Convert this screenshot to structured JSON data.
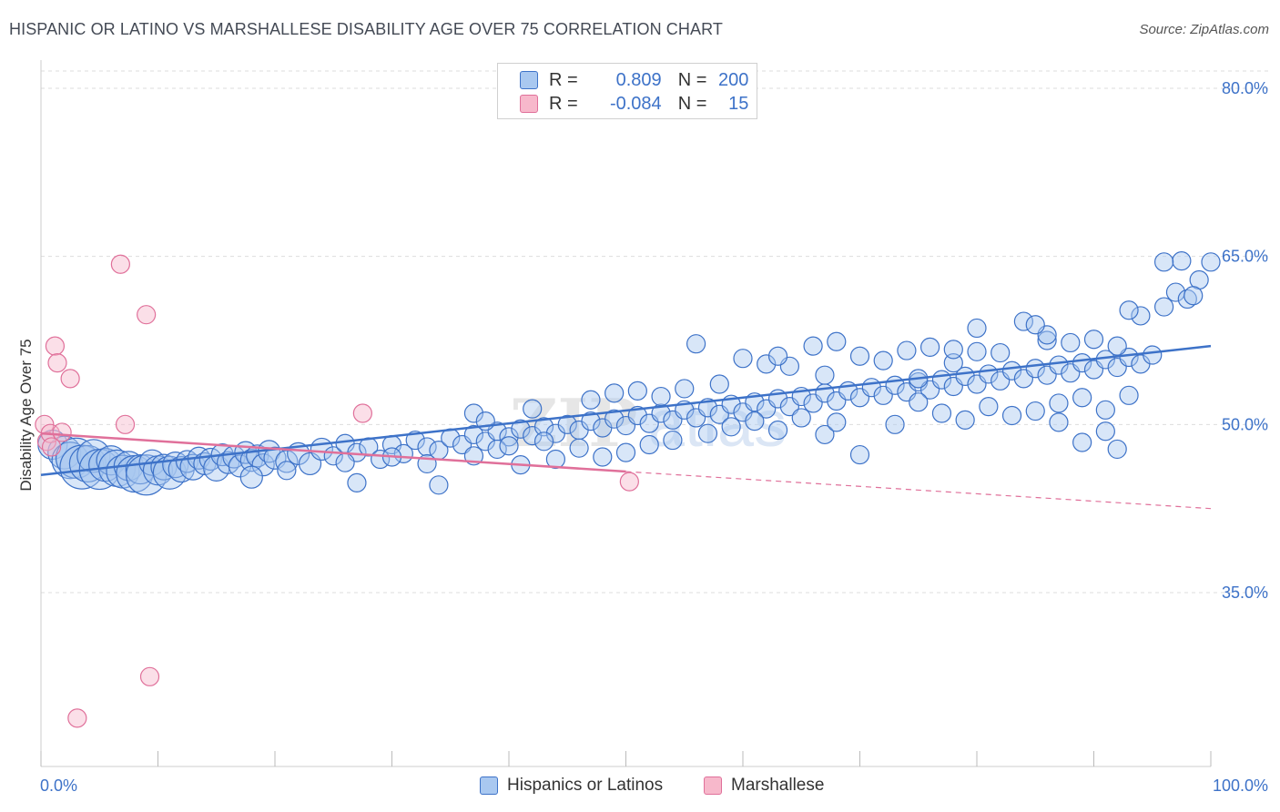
{
  "title": "HISPANIC OR LATINO VS MARSHALLESE DISABILITY AGE OVER 75 CORRELATION CHART",
  "source": "Source: ZipAtlas.com",
  "watermark": "ZIPatlas",
  "legend": {
    "rows": [
      {
        "r_label": "R =",
        "r_value": "0.809",
        "n_label": "N =",
        "n_value": "200"
      },
      {
        "r_label": "R =",
        "r_value": "-0.084",
        "n_label": "N =",
        "n_value": "15"
      }
    ]
  },
  "bottom_legend": [
    "Hispanics or Latinos",
    "Marshallese"
  ],
  "colors": {
    "blue": "#3d72c8",
    "blue_fill": "#a9c8f0",
    "pink": "#e0709a",
    "pink_fill": "#f7b8cb",
    "grid": "#dddddd"
  },
  "chart_data": {
    "type": "scatter",
    "title": "HISPANIC OR LATINO VS MARSHALLESE DISABILITY AGE OVER 75 CORRELATION CHART",
    "xlabel": "",
    "ylabel": "Disability Age Over 75",
    "xlim": [
      0,
      100
    ],
    "ylim": [
      20,
      83
    ],
    "x_tick_labels": [
      "0.0%",
      "100.0%"
    ],
    "y_ticks": [
      35,
      50,
      65,
      80
    ],
    "y_tick_labels": [
      "35.0%",
      "50.0%",
      "65.0%",
      "80.0%"
    ],
    "grid": true,
    "legend_placement": "top-center",
    "series": [
      {
        "name": "Hispanics or Latinos",
        "color": "#3d72c8",
        "trend": {
          "x": [
            0,
            100
          ],
          "y": [
            45.5,
            57.0
          ]
        },
        "points": [
          [
            1,
            48.2,
            16
          ],
          [
            2,
            47.5,
            18
          ],
          [
            2.5,
            46.8,
            20
          ],
          [
            3,
            47.0,
            22
          ],
          [
            3.5,
            46.2,
            24
          ],
          [
            4,
            46.5,
            20
          ],
          [
            4.5,
            47.2,
            18
          ],
          [
            5,
            46.0,
            22
          ],
          [
            5.5,
            46.4,
            18
          ],
          [
            6,
            46.8,
            16
          ],
          [
            6.5,
            46.1,
            20
          ],
          [
            7,
            45.8,
            18
          ],
          [
            7.5,
            46.3,
            16
          ],
          [
            8,
            45.6,
            20
          ],
          [
            8.5,
            46.0,
            16
          ],
          [
            9,
            45.5,
            22
          ],
          [
            9.5,
            46.6,
            14
          ],
          [
            10,
            45.9,
            16
          ],
          [
            10.5,
            46.2,
            14
          ],
          [
            11,
            45.7,
            18
          ],
          [
            11.5,
            46.4,
            14
          ],
          [
            12,
            46.0,
            14
          ],
          [
            12.5,
            46.7,
            12
          ],
          [
            13,
            46.2,
            14
          ],
          [
            13.5,
            47.0,
            12
          ],
          [
            14,
            46.5,
            12
          ],
          [
            14.5,
            46.9,
            12
          ],
          [
            15,
            46.1,
            14
          ],
          [
            15.5,
            47.3,
            12
          ],
          [
            16,
            46.6,
            12
          ],
          [
            16.5,
            47.1,
            12
          ],
          [
            17,
            46.3,
            12
          ],
          [
            17.5,
            47.5,
            12
          ],
          [
            18,
            46.8,
            12
          ],
          [
            18.5,
            47.2,
            12
          ],
          [
            19,
            46.4,
            12
          ],
          [
            19.5,
            47.6,
            12
          ],
          [
            20,
            47.0,
            12
          ],
          [
            21,
            46.7,
            12
          ],
          [
            22,
            47.4,
            12
          ],
          [
            23,
            46.5,
            12
          ],
          [
            24,
            47.8,
            12
          ],
          [
            25,
            47.2,
            10
          ],
          [
            26,
            48.3,
            10
          ],
          [
            27,
            47.5,
            10
          ],
          [
            28,
            48.0,
            10
          ],
          [
            29,
            46.9,
            10
          ],
          [
            30,
            48.2,
            10
          ],
          [
            31,
            47.4,
            10
          ],
          [
            32,
            48.6,
            10
          ],
          [
            33,
            48.0,
            10
          ],
          [
            34,
            47.7,
            10
          ],
          [
            35,
            48.8,
            10
          ],
          [
            36,
            48.2,
            10
          ],
          [
            37,
            49.1,
            10
          ],
          [
            38,
            48.5,
            10
          ],
          [
            39,
            49.4,
            10
          ],
          [
            40,
            48.9,
            10
          ],
          [
            41,
            49.6,
            10
          ],
          [
            42,
            49.0,
            10
          ],
          [
            43,
            49.8,
            10
          ],
          [
            44,
            49.2,
            10
          ],
          [
            45,
            50.0,
            10
          ],
          [
            46,
            49.5,
            10
          ],
          [
            47,
            50.3,
            10
          ],
          [
            48,
            49.7,
            10
          ],
          [
            49,
            50.5,
            10
          ],
          [
            50,
            49.9,
            10
          ],
          [
            51,
            50.8,
            10
          ],
          [
            52,
            50.1,
            10
          ],
          [
            53,
            51.0,
            10
          ],
          [
            54,
            50.4,
            10
          ],
          [
            55,
            51.3,
            10
          ],
          [
            56,
            50.6,
            10
          ],
          [
            57,
            51.5,
            10
          ],
          [
            58,
            50.9,
            10
          ],
          [
            59,
            51.8,
            10
          ],
          [
            60,
            51.1,
            10
          ],
          [
            61,
            52.0,
            10
          ],
          [
            62,
            51.4,
            10
          ],
          [
            63,
            52.3,
            10
          ],
          [
            64,
            51.6,
            10
          ],
          [
            65,
            52.5,
            10
          ],
          [
            66,
            51.9,
            10
          ],
          [
            67,
            52.8,
            10
          ],
          [
            68,
            52.1,
            10
          ],
          [
            69,
            53.0,
            10
          ],
          [
            70,
            52.4,
            10
          ],
          [
            71,
            53.3,
            10
          ],
          [
            72,
            52.6,
            10
          ],
          [
            73,
            53.5,
            10
          ],
          [
            74,
            52.9,
            10
          ],
          [
            75,
            53.8,
            10
          ],
          [
            76,
            53.1,
            10
          ],
          [
            77,
            54.0,
            10
          ],
          [
            78,
            53.4,
            10
          ],
          [
            79,
            54.3,
            10
          ],
          [
            80,
            53.6,
            10
          ],
          [
            81,
            54.5,
            10
          ],
          [
            82,
            53.9,
            10
          ],
          [
            83,
            54.8,
            10
          ],
          [
            84,
            54.1,
            10
          ],
          [
            85,
            55.0,
            10
          ],
          [
            86,
            54.4,
            10
          ],
          [
            87,
            55.3,
            10
          ],
          [
            88,
            54.6,
            10
          ],
          [
            89,
            55.5,
            10
          ],
          [
            90,
            54.9,
            10
          ],
          [
            91,
            55.8,
            10
          ],
          [
            92,
            55.1,
            10
          ],
          [
            93,
            56.0,
            10
          ],
          [
            94,
            55.4,
            10
          ],
          [
            18,
            45.3,
            12
          ],
          [
            27,
            44.8,
            10
          ],
          [
            33,
            46.5,
            10
          ],
          [
            37,
            47.2,
            10
          ],
          [
            39,
            47.8,
            10
          ],
          [
            41,
            46.4,
            10
          ],
          [
            43,
            48.5,
            10
          ],
          [
            46,
            47.9,
            10
          ],
          [
            48,
            47.1,
            10
          ],
          [
            50,
            47.5,
            10
          ],
          [
            52,
            48.2,
            10
          ],
          [
            54,
            48.6,
            10
          ],
          [
            57,
            49.2,
            10
          ],
          [
            59,
            49.8,
            10
          ],
          [
            61,
            50.3,
            10
          ],
          [
            63,
            49.5,
            10
          ],
          [
            65,
            50.6,
            10
          ],
          [
            67,
            49.1,
            10
          ],
          [
            68,
            50.2,
            10
          ],
          [
            70,
            47.3,
            10
          ],
          [
            73,
            50.0,
            10
          ],
          [
            75,
            52.0,
            10
          ],
          [
            77,
            51.0,
            10
          ],
          [
            79,
            50.4,
            10
          ],
          [
            81,
            51.6,
            10
          ],
          [
            83,
            50.8,
            10
          ],
          [
            85,
            51.2,
            10
          ],
          [
            87,
            51.9,
            10
          ],
          [
            89,
            52.4,
            10
          ],
          [
            91,
            51.3,
            10
          ],
          [
            93,
            52.6,
            10
          ],
          [
            95,
            56.2,
            10
          ],
          [
            37,
            51.0,
            10
          ],
          [
            40,
            48.1,
            10
          ],
          [
            44,
            46.9,
            10
          ],
          [
            47,
            52.2,
            10
          ],
          [
            49,
            52.8,
            10
          ],
          [
            51,
            53.0,
            10
          ],
          [
            53,
            52.5,
            10
          ],
          [
            55,
            53.2,
            10
          ],
          [
            58,
            53.6,
            10
          ],
          [
            60,
            55.9,
            10
          ],
          [
            62,
            55.4,
            10
          ],
          [
            64,
            55.2,
            10
          ],
          [
            66,
            57.0,
            10
          ],
          [
            68,
            57.4,
            10
          ],
          [
            70,
            56.1,
            10
          ],
          [
            72,
            55.7,
            10
          ],
          [
            74,
            56.6,
            10
          ],
          [
            76,
            56.9,
            10
          ],
          [
            78,
            55.5,
            10
          ],
          [
            80,
            56.5,
            10
          ],
          [
            82,
            56.4,
            10
          ],
          [
            84,
            59.2,
            10
          ],
          [
            86,
            57.5,
            10
          ],
          [
            88,
            57.3,
            10
          ],
          [
            90,
            57.6,
            10
          ],
          [
            92,
            57.0,
            10
          ],
          [
            94,
            59.7,
            10
          ],
          [
            96,
            60.5,
            10
          ],
          [
            97,
            61.8,
            10
          ],
          [
            98,
            61.2,
            10
          ],
          [
            99,
            62.9,
            10
          ],
          [
            100,
            64.5,
            10
          ],
          [
            97.5,
            64.6,
            10
          ],
          [
            96,
            64.5,
            10
          ],
          [
            98.5,
            61.5,
            10
          ],
          [
            93,
            60.2,
            10
          ],
          [
            86,
            58.0,
            10
          ],
          [
            80,
            58.6,
            10
          ],
          [
            75,
            54.1,
            10
          ],
          [
            63,
            56.1,
            10
          ],
          [
            87,
            50.2,
            10
          ],
          [
            89,
            48.4,
            10
          ],
          [
            91,
            49.4,
            10
          ],
          [
            92,
            47.8,
            10
          ],
          [
            85,
            58.9,
            10
          ],
          [
            78,
            56.7,
            10
          ],
          [
            67,
            54.4,
            10
          ],
          [
            56,
            57.2,
            10
          ],
          [
            42,
            51.4,
            10
          ],
          [
            38,
            50.3,
            10
          ],
          [
            30,
            47.1,
            10
          ],
          [
            26,
            46.6,
            10
          ],
          [
            21,
            45.9,
            10
          ],
          [
            34,
            44.6,
            10
          ]
        ]
      },
      {
        "name": "Marshallese",
        "color": "#e0709a",
        "trend": {
          "x": [
            0,
            50
          ],
          "y": [
            49.2,
            45.8
          ]
        },
        "trend_dashed": {
          "x": [
            50,
            100
          ],
          "y": [
            45.8,
            42.5
          ]
        },
        "points": [
          [
            0.3,
            50.0,
            10
          ],
          [
            0.5,
            48.5,
            10
          ],
          [
            0.8,
            49.2,
            10
          ],
          [
            1.2,
            57.0,
            10
          ],
          [
            1.4,
            55.5,
            10
          ],
          [
            1.8,
            49.3,
            10
          ],
          [
            2.5,
            54.1,
            10
          ],
          [
            3.1,
            23.8,
            10
          ],
          [
            6.8,
            64.3,
            10
          ],
          [
            7.2,
            50.0,
            10
          ],
          [
            9,
            59.8,
            10
          ],
          [
            9.3,
            27.5,
            10
          ],
          [
            27.5,
            51.0,
            10
          ],
          [
            50.3,
            44.9,
            10
          ],
          [
            0.9,
            48.0,
            10
          ]
        ]
      }
    ]
  }
}
